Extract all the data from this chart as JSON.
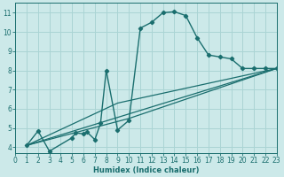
{
  "xlabel": "Humidex (Indice chaleur)",
  "xlim": [
    0,
    23
  ],
  "ylim": [
    3.7,
    11.5
  ],
  "yticks": [
    4,
    5,
    6,
    7,
    8,
    9,
    10,
    11
  ],
  "xticks": [
    0,
    1,
    2,
    3,
    4,
    5,
    6,
    7,
    8,
    9,
    10,
    11,
    12,
    13,
    14,
    15,
    16,
    17,
    18,
    19,
    20,
    21,
    22,
    23
  ],
  "bg_color": "#cce9e9",
  "grid_color": "#aad4d4",
  "line_color": "#1a6e6e",
  "main_curve_x": [
    1,
    2,
    3,
    5,
    5.3,
    6,
    6.3,
    7,
    7.5,
    8,
    9,
    10,
    11,
    12,
    13,
    14,
    15,
    16,
    17,
    18,
    19,
    20,
    21,
    22,
    23
  ],
  "main_curve_y": [
    4.1,
    4.85,
    3.8,
    4.5,
    4.75,
    4.7,
    4.8,
    4.4,
    5.25,
    8.0,
    4.9,
    5.4,
    10.2,
    10.5,
    11.0,
    11.05,
    10.85,
    9.7,
    8.8,
    8.7,
    8.6,
    8.1,
    8.1,
    8.1,
    8.1
  ],
  "line2_x": [
    1,
    23
  ],
  "line2_y": [
    4.1,
    8.1
  ],
  "line3_x": [
    1,
    10,
    23
  ],
  "line3_y": [
    4.1,
    5.5,
    8.1
  ],
  "line4_x": [
    1,
    9,
    23
  ],
  "line4_y": [
    4.1,
    6.3,
    8.1
  ]
}
